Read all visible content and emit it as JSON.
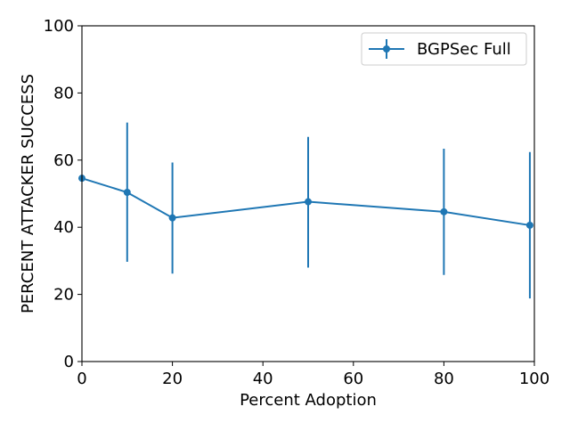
{
  "chart_data": {
    "type": "line",
    "title": "",
    "xlabel": "Percent Adoption",
    "ylabel": "PERCENT ATTACKER SUCCESS",
    "xlim": [
      0,
      100
    ],
    "ylim": [
      0,
      100
    ],
    "xticks": [
      0,
      20,
      40,
      60,
      80,
      100
    ],
    "yticks": [
      0,
      20,
      40,
      60,
      80,
      100
    ],
    "grid": false,
    "legend_position": "top-right",
    "series": [
      {
        "name": "BGPSec Full",
        "color": "#1f77b4",
        "x": [
          0,
          10,
          20,
          50,
          80,
          99
        ],
        "y": [
          54.6,
          50.4,
          42.8,
          47.6,
          44.6,
          40.6
        ],
        "yerr_low": [
          54.6,
          29.7,
          26.2,
          28.0,
          25.8,
          18.8
        ],
        "yerr_high": [
          54.6,
          71.2,
          59.3,
          66.9,
          63.4,
          62.4
        ]
      }
    ]
  }
}
